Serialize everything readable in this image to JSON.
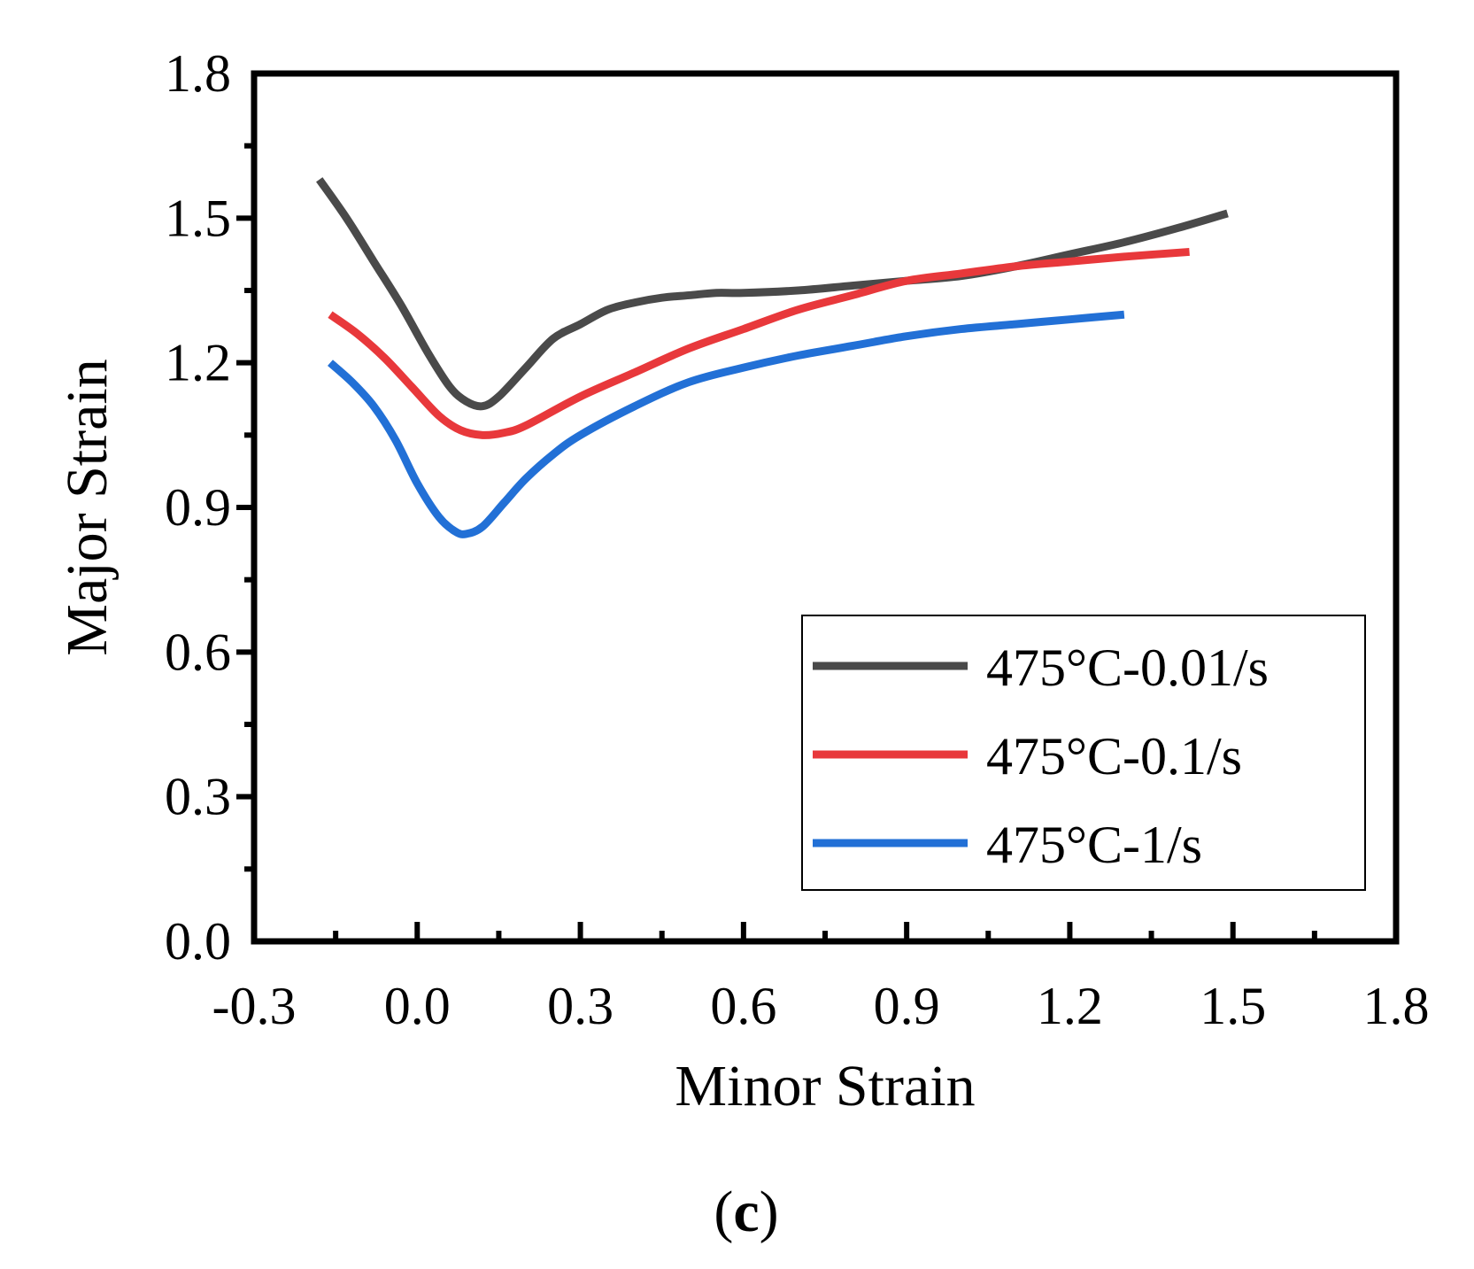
{
  "chart_data": {
    "type": "line",
    "title": "",
    "xlabel": "Minor Strain",
    "ylabel": "Major Strain",
    "xlim": [
      -0.3,
      1.8
    ],
    "ylim": [
      0.0,
      1.8
    ],
    "xticks": [
      "-0.3",
      "0.0",
      "0.3",
      "0.6",
      "0.9",
      "1.2",
      "1.5",
      "1.8"
    ],
    "yticks": [
      "0.0",
      "0.3",
      "0.6",
      "0.9",
      "1.2",
      "1.5",
      "1.8"
    ],
    "grid": false,
    "legend_position": "bottom-right",
    "series": [
      {
        "name": "475°C-0.01/s",
        "color": "#4a4a4a",
        "x": [
          -0.18,
          -0.13,
          -0.08,
          -0.03,
          0.02,
          0.06,
          0.09,
          0.12,
          0.15,
          0.2,
          0.25,
          0.3,
          0.35,
          0.4,
          0.45,
          0.5,
          0.55,
          0.6,
          0.7,
          0.8,
          0.9,
          1.0,
          1.1,
          1.2,
          1.3,
          1.4,
          1.49
        ],
        "y": [
          1.58,
          1.5,
          1.41,
          1.32,
          1.22,
          1.15,
          1.12,
          1.11,
          1.13,
          1.19,
          1.25,
          1.28,
          1.31,
          1.325,
          1.335,
          1.34,
          1.345,
          1.345,
          1.35,
          1.36,
          1.37,
          1.38,
          1.4,
          1.425,
          1.45,
          1.48,
          1.51
        ]
      },
      {
        "name": "475°C-0.1/s",
        "color": "#e8383b",
        "x": [
          -0.16,
          -0.11,
          -0.06,
          -0.01,
          0.04,
          0.08,
          0.12,
          0.16,
          0.2,
          0.3,
          0.4,
          0.5,
          0.6,
          0.7,
          0.8,
          0.9,
          1.0,
          1.1,
          1.2,
          1.3,
          1.42
        ],
        "y": [
          1.3,
          1.26,
          1.21,
          1.15,
          1.09,
          1.06,
          1.05,
          1.055,
          1.07,
          1.13,
          1.18,
          1.23,
          1.27,
          1.31,
          1.34,
          1.37,
          1.385,
          1.4,
          1.41,
          1.42,
          1.43
        ]
      },
      {
        "name": "475°C-1/s",
        "color": "#2270d6",
        "x": [
          -0.16,
          -0.12,
          -0.08,
          -0.04,
          0.0,
          0.04,
          0.07,
          0.09,
          0.12,
          0.16,
          0.2,
          0.25,
          0.3,
          0.4,
          0.5,
          0.6,
          0.7,
          0.8,
          0.9,
          1.0,
          1.1,
          1.2,
          1.3
        ],
        "y": [
          1.2,
          1.16,
          1.11,
          1.04,
          0.95,
          0.88,
          0.85,
          0.845,
          0.86,
          0.91,
          0.96,
          1.01,
          1.05,
          1.11,
          1.16,
          1.19,
          1.215,
          1.235,
          1.255,
          1.27,
          1.28,
          1.29,
          1.3
        ]
      }
    ]
  },
  "caption": {
    "open": "(",
    "letter": "c",
    "close": ")"
  }
}
